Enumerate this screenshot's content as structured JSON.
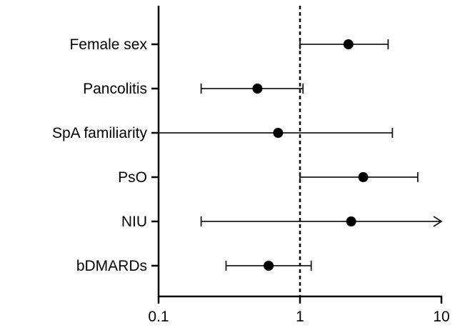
{
  "chart_data": {
    "type": "forest",
    "x_scale": "log",
    "xlim": [
      0.1,
      10
    ],
    "x_ticks": [
      {
        "value": 0.1,
        "label": "0.1"
      },
      {
        "value": 1,
        "label": "1"
      },
      {
        "value": 10,
        "label": "10"
      }
    ],
    "reference_line": {
      "value": 1,
      "style": "dashed"
    },
    "rows": [
      {
        "label": "Female sex",
        "estimate": 2.2,
        "lower": 1.0,
        "upper": 4.2
      },
      {
        "label": "Pancolitis",
        "estimate": 0.5,
        "lower": 0.2,
        "upper": 1.05
      },
      {
        "label": "SpA familiarity",
        "estimate": 0.7,
        "lower": 0.1,
        "upper": 4.5
      },
      {
        "label": "PsO",
        "estimate": 2.8,
        "lower": 1.0,
        "upper": 6.8
      },
      {
        "label": "NIU",
        "estimate": 2.3,
        "lower": 0.2,
        "upper": 10,
        "upper_truncated": true
      },
      {
        "label": "bDMARDs",
        "estimate": 0.6,
        "lower": 0.3,
        "upper": 1.2
      }
    ],
    "title": "",
    "xlabel": "",
    "ylabel": "",
    "marker_color": "#000000",
    "line_color": "#1a1a1a"
  }
}
